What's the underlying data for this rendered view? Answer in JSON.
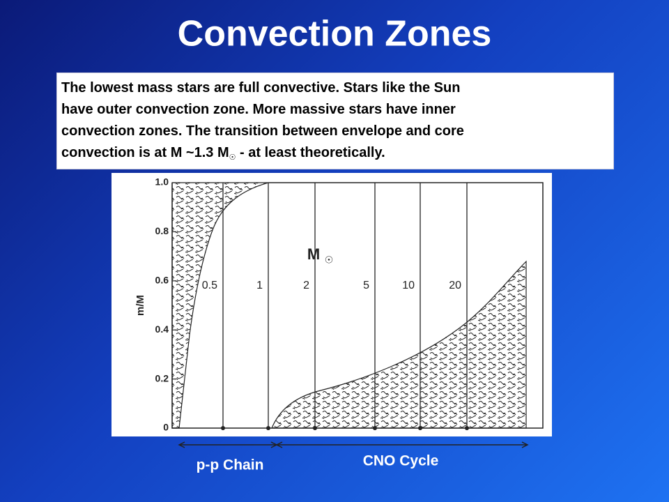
{
  "title": "Convection Zones",
  "text_box": {
    "lines": [
      "The lowest mass stars are full convective. Stars like the Sun",
      "have outer convection zone. More massive stars have inner",
      "convection zones. The transition between envelope and core"
    ],
    "last_line": {
      "text": "convection is at M ~1.3 M",
      "symbol": "☉",
      "rest": " - at least theoretically."
    }
  },
  "figure": {
    "y_axis_label": "m/M",
    "y_ticks": [
      "1.0",
      "0.8",
      "0.6",
      "0.4",
      "0.2",
      "0"
    ],
    "mass_labels": [
      "0.5",
      "1",
      "2",
      "5",
      "10",
      "20"
    ],
    "unit_label": {
      "text": "M",
      "symbol": "☉"
    }
  },
  "pp_label": "p-p Chain",
  "cno_label": "CNO Cycle"
}
